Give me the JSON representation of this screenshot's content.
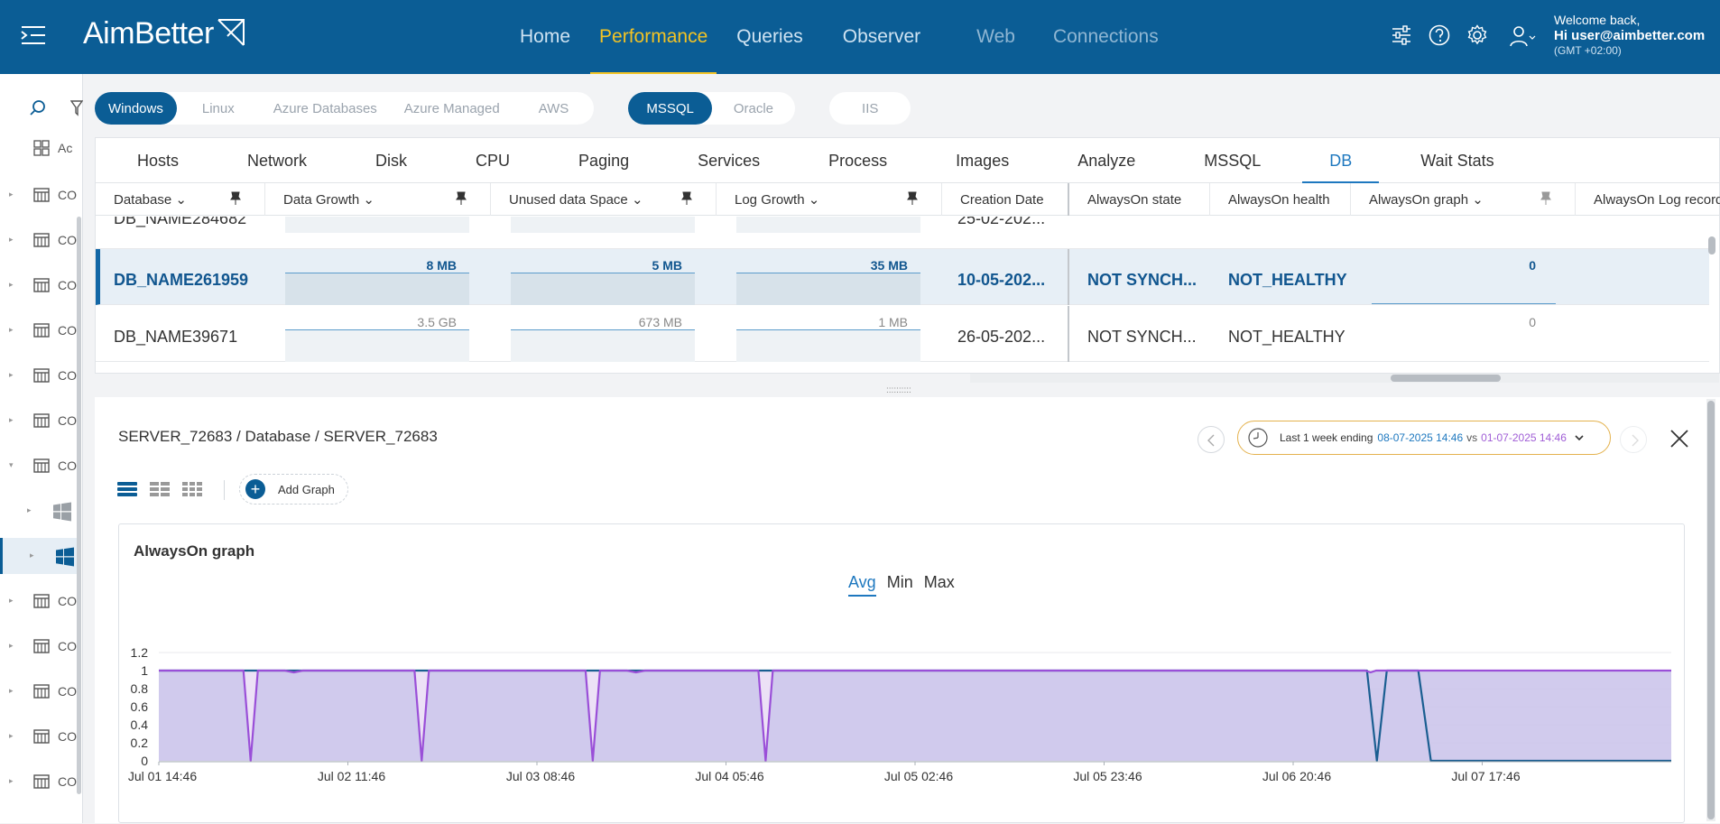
{
  "header": {
    "app_name": "AimBetter",
    "nav": [
      {
        "label": "Home",
        "state": "normal"
      },
      {
        "label": "Performance",
        "state": "active"
      },
      {
        "label": "Queries",
        "state": "normal"
      },
      {
        "label": "Observer",
        "state": "normal"
      },
      {
        "label": "Web",
        "state": "dim"
      },
      {
        "label": "Connections",
        "state": "dim"
      }
    ],
    "welcome": "Welcome back,",
    "user": "Hi user@aimbetter.com",
    "timezone": "(GMT +02:00)",
    "icons": [
      "sliders-icon",
      "help-icon",
      "gear-icon",
      "user-icon"
    ]
  },
  "sidebar": {
    "items": [
      {
        "label": "Ac",
        "icon": "grid-icon",
        "type": "header"
      },
      {
        "label": "CO",
        "icon": "server-icon",
        "type": "server"
      },
      {
        "label": "CO",
        "icon": "server-icon",
        "type": "server"
      },
      {
        "label": "CO",
        "icon": "server-icon",
        "type": "server"
      },
      {
        "label": "CO",
        "icon": "server-icon",
        "type": "server"
      },
      {
        "label": "CO",
        "icon": "server-icon",
        "type": "server"
      },
      {
        "label": "CO",
        "icon": "server-icon",
        "type": "server"
      },
      {
        "label": "CO",
        "icon": "server-icon",
        "type": "server-open"
      },
      {
        "label": "",
        "icon": "windows-icon",
        "type": "os"
      },
      {
        "label": "",
        "icon": "windows-icon",
        "type": "os-selected"
      },
      {
        "label": "CO",
        "icon": "server-icon",
        "type": "server"
      },
      {
        "label": "CO",
        "icon": "server-icon",
        "type": "server"
      },
      {
        "label": "CO",
        "icon": "server-icon",
        "type": "server"
      },
      {
        "label": "CO",
        "icon": "server-icon",
        "type": "server"
      },
      {
        "label": "CO",
        "icon": "server-icon",
        "type": "server"
      }
    ]
  },
  "filters": {
    "os": [
      {
        "label": "Windows",
        "on": true
      },
      {
        "label": "Linux",
        "on": false
      },
      {
        "label": "Azure Databases",
        "on": false
      },
      {
        "label": "Azure Managed",
        "on": false
      },
      {
        "label": "AWS",
        "on": false
      }
    ],
    "db": [
      {
        "label": "MSSQL",
        "on": true
      },
      {
        "label": "Oracle",
        "on": false
      }
    ],
    "web": [
      {
        "label": "IIS",
        "on": false
      }
    ]
  },
  "tabs": [
    {
      "label": "Hosts"
    },
    {
      "label": "Network"
    },
    {
      "label": "Disk"
    },
    {
      "label": "CPU"
    },
    {
      "label": "Paging"
    },
    {
      "label": "Services"
    },
    {
      "label": "Process"
    },
    {
      "label": "Images"
    },
    {
      "label": "Analyze"
    },
    {
      "label": "MSSQL"
    },
    {
      "label": "DB",
      "active": true
    },
    {
      "label": "Wait Stats"
    }
  ],
  "table": {
    "columns": [
      "Database",
      "Data Growth",
      "Unused data Space",
      "Log Growth",
      "Creation Date",
      "AlwaysOn state",
      "AlwaysOn health",
      "AlwaysOn graph",
      "AlwaysOn Log record"
    ],
    "partial_top_row": {
      "database": "DB_NAME284682",
      "creation": "25-02-202..."
    },
    "rows": [
      {
        "database": "DB_NAME261959",
        "data_growth": "8 MB",
        "unused": "5 MB",
        "log_growth": "35 MB",
        "creation": "10-05-202...",
        "state": "NOT SYNCH...",
        "health": "NOT_HEALTHY",
        "graph": "0",
        "selected": true
      },
      {
        "database": "DB_NAME39671",
        "data_growth": "3.5 GB",
        "unused": "673 MB",
        "log_growth": "1 MB",
        "creation": "26-05-202...",
        "state": "NOT SYNCH...",
        "health": "NOT_HEALTHY",
        "graph": "0",
        "selected": false
      }
    ]
  },
  "detail": {
    "breadcrumb": "SERVER_72683 / Database / SERVER_72683",
    "time": {
      "label": "Last 1 week ending",
      "current": "08-07-2025 14:46",
      "vs": "vs",
      "compare": "01-07-2025 14:46"
    },
    "add_graph": "Add Graph",
    "graph_title": "AlwaysOn graph",
    "stat_tabs": [
      {
        "label": "Avg",
        "on": true
      },
      {
        "label": "Min",
        "on": false
      },
      {
        "label": "Max",
        "on": false
      }
    ]
  },
  "chart_data": {
    "type": "area",
    "title": "AlwaysOn graph",
    "x_ticks": [
      "Jul 01 14:46",
      "Jul 02 11:46",
      "Jul 03 08:46",
      "Jul 04 05:46",
      "Jul 05 02:46",
      "Jul 05 23:46",
      "Jul 06 20:46",
      "Jul 07 17:46"
    ],
    "y_ticks": [
      "1.2",
      "1",
      "0.8",
      "0.6",
      "0.4",
      "0.2",
      "0"
    ],
    "ylim": [
      0,
      1.2
    ],
    "x_start": "Jul 01 14:46",
    "x_end": "Jul 08 14:46",
    "x_tick_hours": [
      0,
      21,
      42,
      63,
      84,
      105,
      126,
      147
    ],
    "series": [
      {
        "color": "#1a5e91",
        "fill": "#ece1f6",
        "points": [
          [
            0,
            1
          ],
          [
            134.2,
            1
          ],
          [
            135.3,
            0
          ],
          [
            136.4,
            1
          ],
          [
            139.9,
            1
          ],
          [
            141.3,
            0
          ],
          [
            168,
            0
          ]
        ]
      },
      {
        "color": "#9a4fd8",
        "fill": "#cfc8ec",
        "points": [
          [
            0,
            1
          ],
          [
            9.4,
            1
          ],
          [
            10.2,
            0
          ],
          [
            11.0,
            1
          ],
          [
            14.0,
            1
          ],
          [
            15.0,
            0.98
          ],
          [
            16.0,
            1
          ],
          [
            28.4,
            1
          ],
          [
            29.2,
            0
          ],
          [
            30.0,
            1
          ],
          [
            47.4,
            1
          ],
          [
            48.2,
            0
          ],
          [
            49.0,
            1
          ],
          [
            52.0,
            1
          ],
          [
            53.0,
            0.98
          ],
          [
            54.0,
            1
          ],
          [
            66.6,
            1
          ],
          [
            67.4,
            0
          ],
          [
            68.2,
            1
          ],
          [
            134.0,
            1
          ],
          [
            134.6,
            0.98
          ],
          [
            135.2,
            1
          ],
          [
            168,
            1
          ]
        ]
      }
    ]
  }
}
